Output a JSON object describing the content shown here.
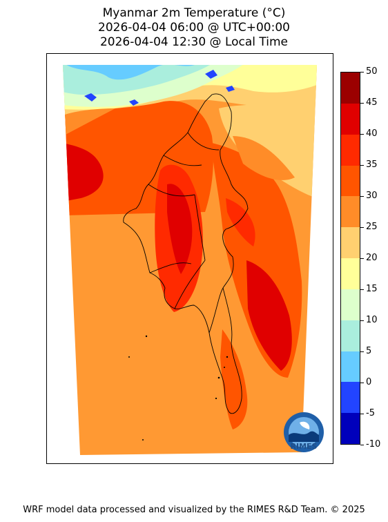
{
  "title": {
    "line1": "Myanmar 2m Temperature (°C)",
    "line2": "2026-04-04 06:00 @ UTC+00:00",
    "line3": "2026-04-04 12:30 @ Local Time"
  },
  "colorbar": {
    "labels": [
      "50",
      "45",
      "40",
      "35",
      "30",
      "25",
      "20",
      "15",
      "10",
      "5",
      "0",
      "-5",
      "-10"
    ],
    "colors": [
      "#9b0000",
      "#e00000",
      "#ff2a00",
      "#ff5500",
      "#ff8c28",
      "#ffd070",
      "#ffff99",
      "#ddffcc",
      "#aaeedd",
      "#66ccff",
      "#2244ff",
      "#0000bb"
    ]
  },
  "logo": {
    "text": "RIMES"
  },
  "footer": "WRF model data processed and visualized by the RIMES R&D Team. © 2025"
}
